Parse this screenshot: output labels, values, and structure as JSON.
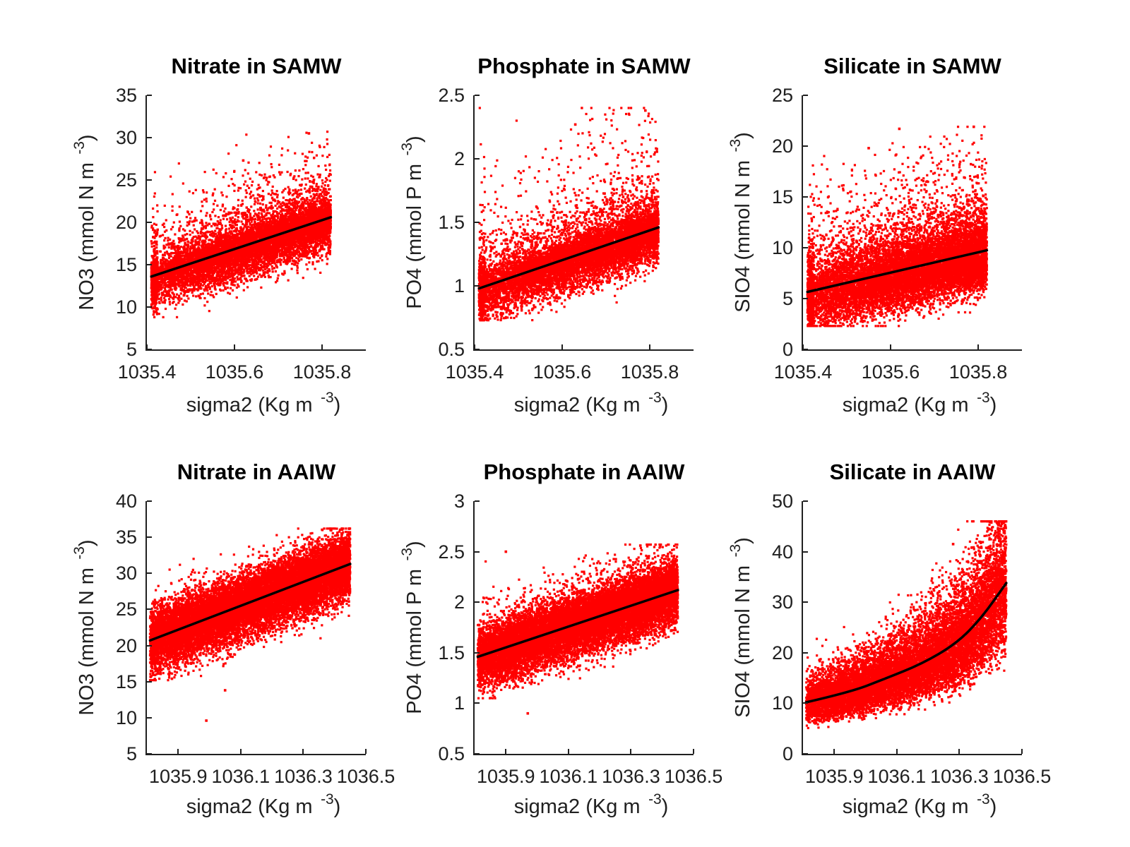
{
  "figure": {
    "background": "#ffffff",
    "marker_color": "#ff0000",
    "fit_line_color": "#000000",
    "axis_color": "#202020",
    "title_color": "#000000"
  },
  "chart_data": [
    {
      "id": "nitrate-samw",
      "type": "scatter",
      "title": "Nitrate in SAMW",
      "xlabel_main": "sigma2 (Kg m",
      "xlabel_sup": "-3",
      "xlabel_close": ")",
      "ylabel_main": "NO3 (mmol N m",
      "ylabel_sup": "-3",
      "ylabel_close": ")",
      "xlim": [
        1035.4,
        1035.9
      ],
      "ylim": [
        5,
        35
      ],
      "xticks": [
        1035.4,
        1035.6,
        1035.8
      ],
      "xtick_labels": [
        "1035.4",
        "1035.6",
        "1035.8"
      ],
      "yticks": [
        5,
        10,
        15,
        20,
        25,
        30,
        35
      ],
      "ytick_labels": [
        "5",
        "10",
        "15",
        "20",
        "25",
        "30",
        "35"
      ],
      "grid": false,
      "legend": null,
      "trend_line": [
        [
          1035.41,
          13.6
        ],
        [
          1035.82,
          20.6
        ]
      ],
      "scatter": {
        "n": 9500,
        "x_range": [
          1035.41,
          1035.82
        ],
        "x_power": 0.78,
        "left_clump": {
          "frac": 0.05,
          "width": 0.015
        },
        "noise": [
          {
            "w": 0.6,
            "mu": 0.0,
            "sd": 1.0
          },
          {
            "w": 0.25,
            "mu": -2.0,
            "sd": 1.3
          },
          {
            "w": 0.12,
            "mu": 2.3,
            "sd": 1.5
          },
          {
            "w": 0.03,
            "mu": 6.0,
            "sd": 2.6
          }
        ],
        "y_clamp": [
          8.8,
          30.7
        ]
      },
      "extra_points": [
        [
          1035.77,
          30.5
        ],
        [
          1035.62,
          27.3
        ]
      ]
    },
    {
      "id": "phosphate-samw",
      "type": "scatter",
      "title": "Phosphate in SAMW",
      "xlabel_main": "sigma2 (Kg m",
      "xlabel_sup": "-3",
      "xlabel_close": ")",
      "ylabel_main": "PO4 (mmol P m",
      "ylabel_sup": "-3",
      "ylabel_close": ")",
      "xlim": [
        1035.4,
        1035.9
      ],
      "ylim": [
        0.5,
        2.5
      ],
      "xticks": [
        1035.4,
        1035.6,
        1035.8
      ],
      "xtick_labels": [
        "1035.4",
        "1035.6",
        "1035.8"
      ],
      "yticks": [
        0.5,
        1,
        1.5,
        2,
        2.5
      ],
      "ytick_labels": [
        "0.5",
        "1",
        "1.5",
        "2",
        "2.5"
      ],
      "grid": false,
      "legend": null,
      "trend_line": [
        [
          1035.41,
          0.98
        ],
        [
          1035.82,
          1.46
        ]
      ],
      "scatter": {
        "n": 9500,
        "x_range": [
          1035.41,
          1035.82
        ],
        "x_power": 0.78,
        "left_clump": {
          "frac": 0.05,
          "width": 0.015
        },
        "noise": [
          {
            "w": 0.6,
            "mu": 0.0,
            "sd": 0.075
          },
          {
            "w": 0.25,
            "mu": -0.14,
            "sd": 0.09
          },
          {
            "w": 0.12,
            "mu": 0.18,
            "sd": 0.12
          },
          {
            "w": 0.03,
            "mu": 0.55,
            "sd": 0.28
          }
        ],
        "y_clamp": [
          0.73,
          2.4
        ]
      },
      "extra_points": [
        [
          1035.79,
          2.38
        ],
        [
          1035.63,
          2.27
        ]
      ]
    },
    {
      "id": "silicate-samw",
      "type": "scatter",
      "title": "Silicate in SAMW",
      "xlabel_main": "sigma2 (Kg m",
      "xlabel_sup": "-3",
      "xlabel_close": ")",
      "ylabel_main": "SIO4 (mmol N m",
      "ylabel_sup": "-3",
      "ylabel_close": ")",
      "xlim": [
        1035.4,
        1035.9
      ],
      "ylim": [
        0,
        25
      ],
      "xticks": [
        1035.4,
        1035.6,
        1035.8
      ],
      "xtick_labels": [
        "1035.4",
        "1035.6",
        "1035.8"
      ],
      "yticks": [
        0,
        5,
        10,
        15,
        20,
        25
      ],
      "ytick_labels": [
        "0",
        "5",
        "10",
        "15",
        "20",
        "25"
      ],
      "grid": false,
      "legend": null,
      "trend_line": [
        [
          1035.41,
          5.65
        ],
        [
          1035.82,
          9.75
        ]
      ],
      "scatter": {
        "n": 11000,
        "x_range": [
          1035.41,
          1035.82
        ],
        "x_power": 0.78,
        "left_clump": {
          "frac": 0.04,
          "width": 0.015
        },
        "noise": [
          {
            "w": 0.56,
            "mu": 0.0,
            "sd": 1.4
          },
          {
            "w": 0.27,
            "mu": -1.9,
            "sd": 1.2
          },
          {
            "w": 0.13,
            "mu": 2.6,
            "sd": 1.7
          },
          {
            "w": 0.04,
            "mu": 6.5,
            "sd": 2.8
          }
        ],
        "y_clamp": [
          2.3,
          21.9
        ]
      },
      "extra_points": [
        [
          1035.62,
          21.7
        ],
        [
          1035.79,
          21.9
        ],
        [
          1035.55,
          19.8
        ]
      ]
    },
    {
      "id": "nitrate-aaiw",
      "type": "scatter",
      "title": "Nitrate in AAIW",
      "xlabel_main": "sigma2 (Kg m",
      "xlabel_sup": "-3",
      "xlabel_close": ")",
      "ylabel_main": "NO3 (mmol N m",
      "ylabel_sup": "-3",
      "ylabel_close": ")",
      "xlim": [
        1035.8,
        1036.5
      ],
      "ylim": [
        5,
        40
      ],
      "xticks": [
        1035.9,
        1036.1,
        1036.3,
        1036.5
      ],
      "xtick_labels": [
        "1035.9",
        "1036.1",
        "1036.3",
        "1036.5"
      ],
      "yticks": [
        5,
        10,
        15,
        20,
        25,
        30,
        35,
        40
      ],
      "ytick_labels": [
        "5",
        "10",
        "15",
        "20",
        "25",
        "30",
        "35",
        "40"
      ],
      "grid": false,
      "legend": null,
      "trend_line": [
        [
          1035.81,
          20.7
        ],
        [
          1036.45,
          31.3
        ]
      ],
      "scatter": {
        "n": 15000,
        "x_range": [
          1035.81,
          1036.45
        ],
        "x_power": 0.92,
        "noise": [
          {
            "w": 0.66,
            "mu": 0.0,
            "sd": 1.7
          },
          {
            "w": 0.18,
            "mu": -2.8,
            "sd": 1.6
          },
          {
            "w": 0.14,
            "mu": 2.3,
            "sd": 1.3
          },
          {
            "w": 0.02,
            "mu": 4.5,
            "sd": 1.8
          }
        ],
        "y_clamp": [
          15.2,
          36.2
        ]
      },
      "extra_points": [
        [
          1035.99,
          9.6
        ],
        [
          1036.05,
          13.8
        ],
        [
          1035.88,
          15.4
        ]
      ]
    },
    {
      "id": "phosphate-aaiw",
      "type": "scatter",
      "title": "Phosphate in AAIW",
      "xlabel_main": "sigma2 (Kg m",
      "xlabel_sup": "-3",
      "xlabel_close": ")",
      "ylabel_main": "PO4 (mmol P m",
      "ylabel_sup": "-3",
      "ylabel_close": ")",
      "xlim": [
        1035.8,
        1036.5
      ],
      "ylim": [
        0.5,
        3
      ],
      "xticks": [
        1035.9,
        1036.1,
        1036.3,
        1036.5
      ],
      "xtick_labels": [
        "1035.9",
        "1036.1",
        "1036.3",
        "1036.5"
      ],
      "yticks": [
        0.5,
        1,
        1.5,
        2,
        2.5,
        3
      ],
      "ytick_labels": [
        "0.5",
        "1",
        "1.5",
        "2",
        "2.5",
        "3"
      ],
      "grid": false,
      "legend": null,
      "trend_line": [
        [
          1035.81,
          1.46
        ],
        [
          1036.45,
          2.12
        ]
      ],
      "scatter": {
        "n": 15000,
        "x_range": [
          1035.81,
          1036.45
        ],
        "x_power": 0.92,
        "noise": [
          {
            "w": 0.66,
            "mu": 0.0,
            "sd": 0.115
          },
          {
            "w": 0.18,
            "mu": -0.19,
            "sd": 0.11
          },
          {
            "w": 0.14,
            "mu": 0.16,
            "sd": 0.1
          },
          {
            "w": 0.02,
            "mu": 0.38,
            "sd": 0.15
          }
        ],
        "y_clamp": [
          1.05,
          2.57
        ]
      },
      "extra_points": [
        [
          1035.97,
          0.9
        ],
        [
          1036.33,
          2.56
        ],
        [
          1035.9,
          2.5
        ]
      ]
    },
    {
      "id": "silicate-aaiw",
      "type": "scatter",
      "title": "Silicate in AAIW",
      "xlabel_main": "sigma2 (Kg m",
      "xlabel_sup": "-3",
      "xlabel_close": ")",
      "ylabel_main": "SIO4 (mmol N m",
      "ylabel_sup": "-3",
      "ylabel_close": ")",
      "xlim": [
        1035.8,
        1036.5
      ],
      "ylim": [
        0,
        50
      ],
      "xticks": [
        1035.9,
        1036.1,
        1036.3,
        1036.5
      ],
      "xtick_labels": [
        "1035.9",
        "1036.1",
        "1036.3",
        "1036.5"
      ],
      "yticks": [
        0,
        10,
        20,
        30,
        40,
        50
      ],
      "ytick_labels": [
        "0",
        "10",
        "20",
        "30",
        "40",
        "50"
      ],
      "grid": false,
      "legend": null,
      "trend_line": [
        [
          1035.81,
          10.2
        ],
        [
          1035.95,
          12.2
        ],
        [
          1036.06,
          14.8
        ],
        [
          1036.18,
          17.8
        ],
        [
          1036.29,
          21.8
        ],
        [
          1036.37,
          26.8
        ],
        [
          1036.45,
          33.8
        ]
      ],
      "scatter": {
        "n": 12000,
        "x_range": [
          1035.81,
          1036.45
        ],
        "x_power": 0.92,
        "log_noise": true,
        "noise": [
          {
            "w": 0.6,
            "mu": 0.0,
            "sd": 0.16
          },
          {
            "w": 0.2,
            "mu": 0.24,
            "sd": 0.16
          },
          {
            "w": 0.2,
            "mu": -0.26,
            "sd": 0.16
          }
        ],
        "y_clamp": [
          3.8,
          46
        ]
      },
      "extra_points": [
        [
          1036.42,
          45.8
        ],
        [
          1036.28,
          41.5
        ]
      ]
    }
  ]
}
